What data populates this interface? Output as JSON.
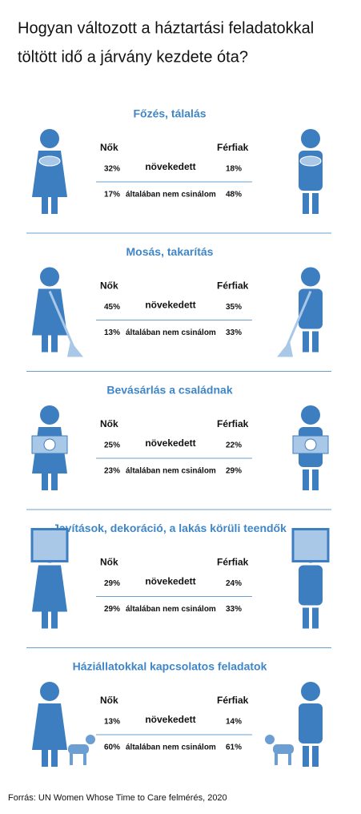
{
  "title": [
    "Hogyan változott a háztartási feladatokkal",
    "töltött idő a járvány kezdete óta?"
  ],
  "sections": [
    {
      "title": "Főzés, tálalás",
      "women_label": "Nők",
      "men_label": "Férfiak",
      "rows": [
        {
          "women": "32%",
          "label": "növekedett",
          "men": "18%"
        },
        {
          "women": "17%",
          "label": "általában nem csinálom",
          "men": "48%"
        }
      ]
    },
    {
      "title": "Mosás, takarítás",
      "women_label": "Nők",
      "men_label": "Férfiak",
      "rows": [
        {
          "women": "45%",
          "label": "növekedett",
          "men": "35%"
        },
        {
          "women": "13%",
          "label": "általában nem csinálom",
          "men": "33%"
        }
      ]
    },
    {
      "title": "Bevásárlás a családnak",
      "women_label": "Nők",
      "men_label": "Férfiak",
      "rows": [
        {
          "women": "25%",
          "label": "növekedett",
          "men": "22%"
        },
        {
          "women": "23%",
          "label": "általában nem csinálom",
          "men": "29%"
        }
      ]
    },
    {
      "title": "Javítások, dekoráció, a lakás körüli teendők",
      "women_label": "Nők",
      "men_label": "Férfiak",
      "rows": [
        {
          "women": "29%",
          "label": "növekedett",
          "men": "24%"
        },
        {
          "women": "29%",
          "label": "általában nem csinálom",
          "men": "33%"
        }
      ]
    },
    {
      "title": "Háziállatokkal kapcsolatos feladatok",
      "women_label": "Nők",
      "men_label": "Férfiak",
      "rows": [
        {
          "women": "13%",
          "label": "növekedett",
          "men": "14%"
        },
        {
          "women": "60%",
          "label": "általában nem csinálom",
          "men": "61%"
        }
      ]
    }
  ],
  "source": "Forrás: UN Women Whose Time to Care felmérés, 2020"
}
